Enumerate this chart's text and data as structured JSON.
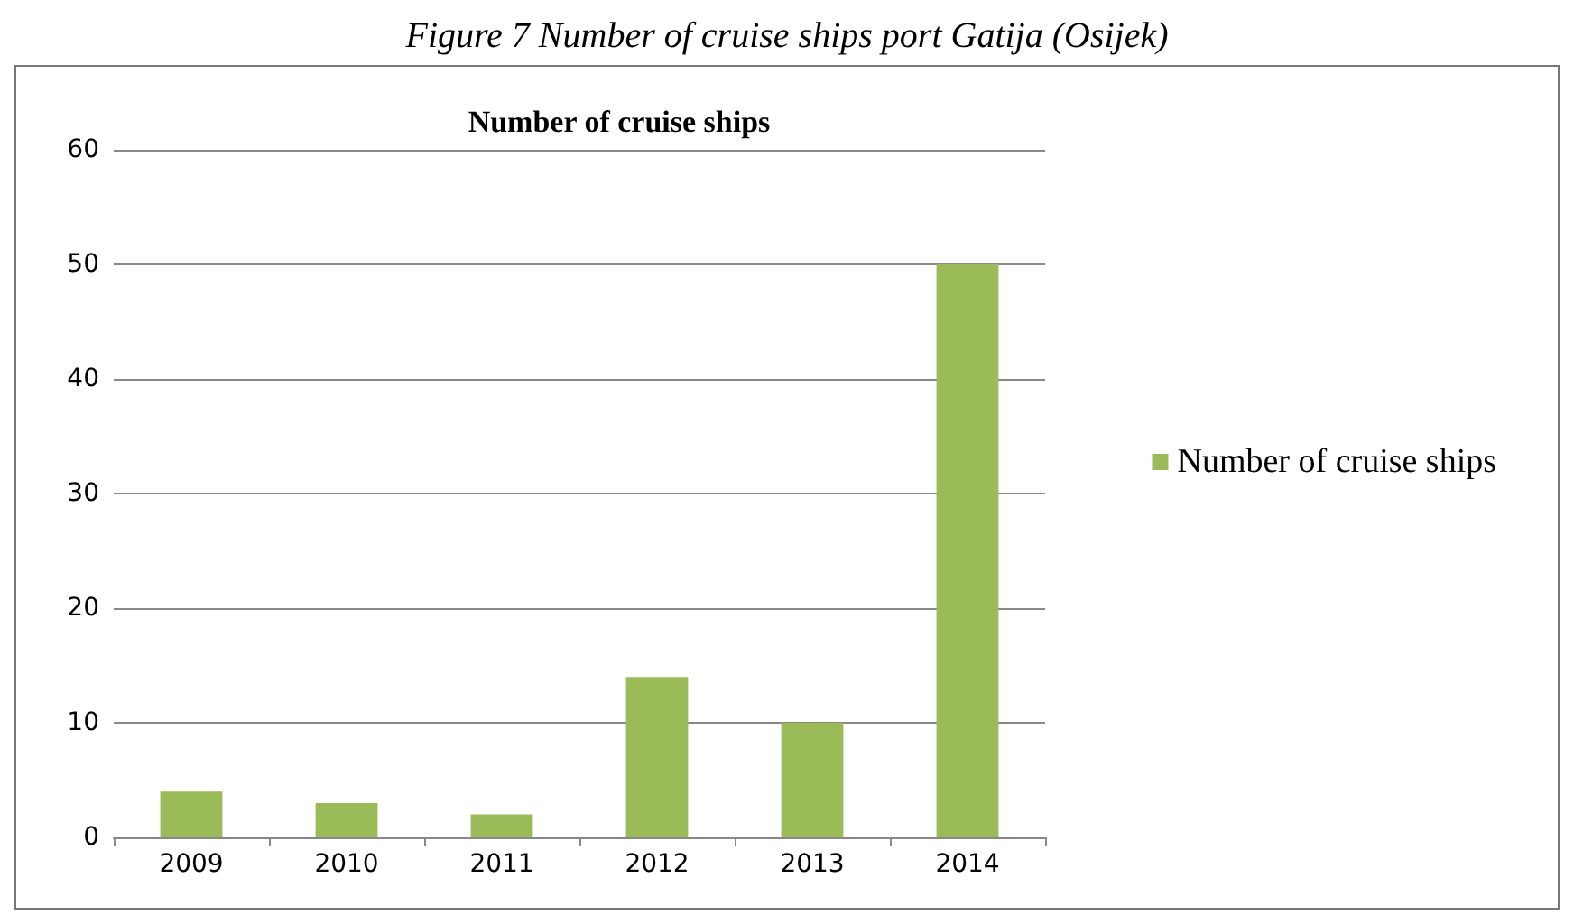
{
  "chart_data": {
    "type": "bar",
    "title": "Number of cruise ships",
    "annotations": [
      "Figure 7 Number of cruise ships port Gatija (Osijek)"
    ],
    "categories": [
      "2009",
      "2010",
      "2011",
      "2012",
      "2013",
      "2014"
    ],
    "series": [
      {
        "name": "Number of cruise ships",
        "color": "#9bbb59",
        "values": [
          4,
          3,
          2,
          14,
          10,
          50
        ]
      }
    ],
    "ylim": [
      0,
      60
    ],
    "yticks": [
      0,
      10,
      20,
      30,
      40,
      50,
      60
    ],
    "grid": "y",
    "legend": "right"
  }
}
